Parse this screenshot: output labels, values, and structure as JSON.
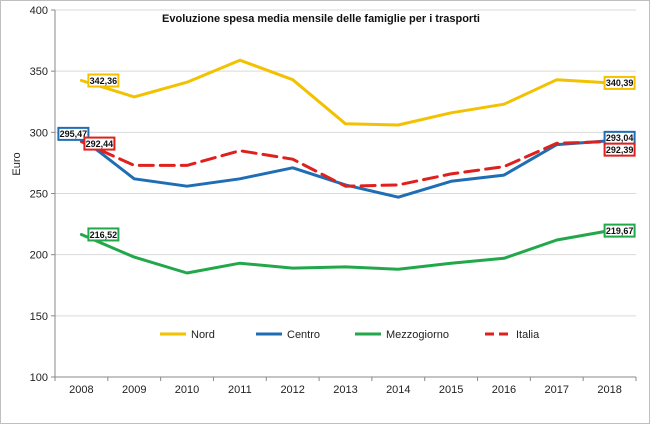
{
  "chart_data": {
    "type": "line",
    "title": "Evoluzione spesa media mensile delle famiglie per i trasporti",
    "xlabel": "",
    "ylabel": "Euro",
    "ylim": [
      100,
      400
    ],
    "y_ticks": [
      "100",
      "150",
      "200",
      "250",
      "300",
      "350",
      "400"
    ],
    "y_tick_values": [
      100,
      150,
      200,
      250,
      300,
      350,
      400
    ],
    "grid": true,
    "legend_position": "bottom-inside",
    "categories": [
      "2008",
      "2009",
      "2010",
      "2011",
      "2012",
      "2013",
      "2014",
      "2015",
      "2016",
      "2017",
      "2018"
    ],
    "series": [
      {
        "name": "Nord",
        "color": "#f2c200",
        "dash": "solid",
        "values": [
          342.36,
          329,
          341,
          359,
          343,
          307,
          306,
          316,
          323,
          343,
          340.39
        ],
        "labels": [
          {
            "index": 0,
            "text": "342,36"
          },
          {
            "index": 10,
            "text": "340,39"
          }
        ]
      },
      {
        "name": "Centro",
        "color": "#1f6eb4",
        "dash": "solid",
        "values": [
          295.47,
          262,
          256,
          262,
          271,
          257,
          247,
          260,
          265,
          290,
          293.04
        ],
        "labels": [
          {
            "index": 0,
            "text": "295,47"
          },
          {
            "index": 10,
            "text": "293,04"
          }
        ]
      },
      {
        "name": "Mezzogiorno",
        "color": "#22a84a",
        "dash": "solid",
        "values": [
          216.52,
          198,
          185,
          193,
          189,
          190,
          188,
          193,
          197,
          212,
          219.67
        ],
        "labels": [
          {
            "index": 0,
            "text": "216,52"
          },
          {
            "index": 10,
            "text": "219,67"
          }
        ]
      },
      {
        "name": "Italia",
        "color": "#e0201d",
        "dash": "dashed",
        "values": [
          292.44,
          273,
          273,
          285,
          278,
          256,
          257,
          266,
          272,
          291,
          292.39
        ],
        "labels": [
          {
            "index": 0,
            "text": "292,44"
          },
          {
            "index": 10,
            "text": "292,39"
          }
        ]
      }
    ]
  }
}
